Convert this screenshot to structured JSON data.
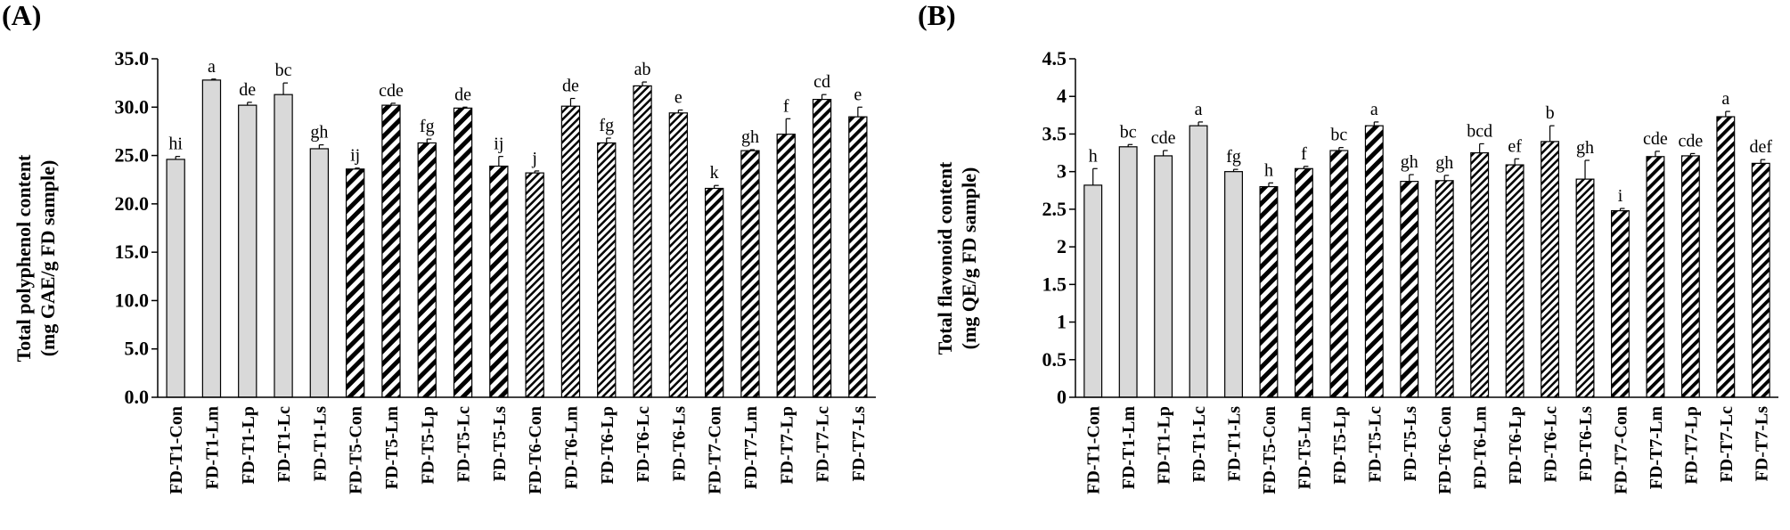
{
  "colors": {
    "solid_fill": "#d9d9d9",
    "stroke": "#000000",
    "background": "#ffffff"
  },
  "fill_patterns": [
    "solid",
    "hatch-wide",
    "hatch-narrow",
    "hatch-medium"
  ],
  "chart_data": [
    {
      "type": "bar",
      "panel_label": "(A)",
      "ylabel_line1": "Total polyphenol content",
      "ylabel_line2": "(mg GAE/g FD sample)",
      "ylim": [
        0,
        35
      ],
      "ytick_values": [
        0,
        5,
        10,
        15,
        20,
        25,
        30,
        35
      ],
      "ytick_labels": [
        "0.0",
        "5.0",
        "10.0",
        "15.0",
        "20.0",
        "25.0",
        "30.0",
        "35.0"
      ],
      "categories": [
        "FD-T1-Con",
        "FD-T1-Lm",
        "FD-T1-Lp",
        "FD-T1-Lc",
        "FD-T1-Ls",
        "FD-T5-Con",
        "FD-T5-Lm",
        "FD-T5-Lp",
        "FD-T5-Lc",
        "FD-T5-Ls",
        "FD-T6-Con",
        "FD-T6-Lm",
        "FD-T6-Lp",
        "FD-T6-Lc",
        "FD-T6-Ls",
        "FD-T7-Con",
        "FD-T7-Lm",
        "FD-T7-Lp",
        "FD-T7-Lc",
        "FD-T7-Ls"
      ],
      "values": [
        24.6,
        32.8,
        30.2,
        31.3,
        25.7,
        23.6,
        30.2,
        26.3,
        29.9,
        23.9,
        23.2,
        30.1,
        26.3,
        32.2,
        29.4,
        21.6,
        25.5,
        27.2,
        30.8,
        29.0
      ],
      "errors": [
        0.3,
        0.1,
        0.3,
        1.2,
        0.4,
        0.1,
        0.2,
        0.4,
        0.1,
        1.0,
        0.2,
        0.8,
        0.5,
        0.4,
        0.3,
        0.3,
        0.1,
        1.6,
        0.5,
        1.0
      ],
      "groups": [
        0,
        0,
        0,
        0,
        0,
        1,
        1,
        1,
        1,
        1,
        2,
        2,
        2,
        2,
        2,
        3,
        3,
        3,
        3,
        3
      ],
      "letters": [
        "hi",
        "a",
        "de",
        "bc",
        "gh",
        "ij",
        "cde",
        "fg",
        "de",
        "ij",
        "j",
        "de",
        "fg",
        "ab",
        "e",
        "k",
        "gh",
        "f",
        "cd",
        "e"
      ]
    },
    {
      "type": "bar",
      "panel_label": "(B)",
      "ylabel_line1": "Total flavonoid content",
      "ylabel_line2": "(mg QE/g FD sample)",
      "ylim": [
        0,
        4.5
      ],
      "ytick_values": [
        0,
        0.5,
        1,
        1.5,
        2,
        2.5,
        3,
        3.5,
        4,
        4.5
      ],
      "ytick_labels": [
        "0",
        "0.5",
        "1",
        "1.5",
        "2",
        "2.5",
        "3",
        "3.5",
        "4",
        "4.5"
      ],
      "categories": [
        "FD-T1-Con",
        "FD-T1-Lm",
        "FD-T1-Lp",
        "FD-T1-Lc",
        "FD-T1-Ls",
        "FD-T5-Con",
        "FD-T5-Lm",
        "FD-T5-Lp",
        "FD-T5-Lc",
        "FD-T5-Ls",
        "FD-T6-Con",
        "FD-T6-Lm",
        "FD-T6-Lp",
        "FD-T6-Lc",
        "FD-T6-Ls",
        "FD-T7-Con",
        "FD-T7-Lm",
        "FD-T7-Lp",
        "FD-T7-Lc",
        "FD-T7-Ls"
      ],
      "values": [
        2.82,
        3.33,
        3.21,
        3.61,
        3.0,
        2.8,
        3.04,
        3.28,
        3.61,
        2.87,
        2.88,
        3.25,
        3.09,
        3.4,
        2.9,
        2.48,
        3.2,
        3.21,
        3.73,
        3.11
      ],
      "errors": [
        0.22,
        0.03,
        0.07,
        0.05,
        0.03,
        0.05,
        0.03,
        0.04,
        0.05,
        0.09,
        0.07,
        0.12,
        0.08,
        0.21,
        0.25,
        0.03,
        0.07,
        0.03,
        0.07,
        0.05
      ],
      "groups": [
        0,
        0,
        0,
        0,
        0,
        1,
        1,
        1,
        1,
        1,
        2,
        2,
        2,
        2,
        2,
        3,
        3,
        3,
        3,
        3
      ],
      "letters": [
        "h",
        "bc",
        "cde",
        "a",
        "fg",
        "h",
        "f",
        "bc",
        "a",
        "gh",
        "gh",
        "bcd",
        "ef",
        "b",
        "gh",
        "i",
        "cde",
        "cde",
        "a",
        "def"
      ]
    }
  ]
}
